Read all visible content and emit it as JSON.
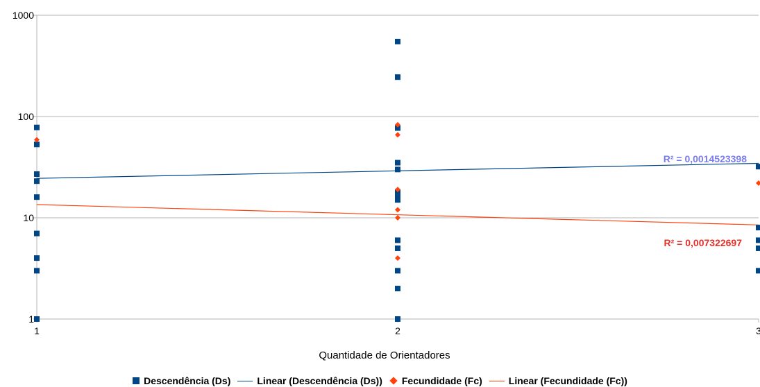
{
  "chart_data": {
    "type": "scatter",
    "xlabel": "Quantidade de Orientadores",
    "ylabel": "",
    "xlim": [
      1,
      3
    ],
    "ylim": [
      1,
      1000
    ],
    "yscale": "log",
    "grid": true,
    "legend_position": "bottom",
    "x_ticks": [
      "1",
      "2",
      "3"
    ],
    "y_ticks": [
      "1",
      "10",
      "100",
      "1000"
    ],
    "series": [
      {
        "name": "Descendência (Ds)",
        "marker": "square",
        "color": "#004586",
        "points": [
          {
            "x": 1,
            "y": 78
          },
          {
            "x": 1,
            "y": 53
          },
          {
            "x": 1,
            "y": 27
          },
          {
            "x": 1,
            "y": 23
          },
          {
            "x": 1,
            "y": 16
          },
          {
            "x": 1,
            "y": 7
          },
          {
            "x": 1,
            "y": 4
          },
          {
            "x": 1,
            "y": 3
          },
          {
            "x": 1,
            "y": 1
          },
          {
            "x": 2,
            "y": 550
          },
          {
            "x": 2,
            "y": 245
          },
          {
            "x": 2,
            "y": 77
          },
          {
            "x": 2,
            "y": 35
          },
          {
            "x": 2,
            "y": 30
          },
          {
            "x": 2,
            "y": 18
          },
          {
            "x": 2,
            "y": 17
          },
          {
            "x": 2,
            "y": 16
          },
          {
            "x": 2,
            "y": 15
          },
          {
            "x": 2,
            "y": 6
          },
          {
            "x": 2,
            "y": 5
          },
          {
            "x": 2,
            "y": 3
          },
          {
            "x": 2,
            "y": 2
          },
          {
            "x": 2,
            "y": 1
          },
          {
            "x": 3,
            "y": 32
          },
          {
            "x": 3,
            "y": 8
          },
          {
            "x": 3,
            "y": 6
          },
          {
            "x": 3,
            "y": 5
          },
          {
            "x": 3,
            "y": 3
          }
        ]
      },
      {
        "name": "Fecundidade (Fc)",
        "marker": "diamond",
        "color": "#ff420e",
        "points": [
          {
            "x": 1,
            "y": 59
          },
          {
            "x": 2,
            "y": 83
          },
          {
            "x": 2,
            "y": 66
          },
          {
            "x": 2,
            "y": 19
          },
          {
            "x": 2,
            "y": 12
          },
          {
            "x": 2,
            "y": 10
          },
          {
            "x": 2,
            "y": 4
          },
          {
            "x": 3,
            "y": 22
          }
        ]
      }
    ],
    "trendlines": [
      {
        "name": "Linear (Descendência (Ds))",
        "color": "#004586",
        "start": {
          "x": 1,
          "y": 24.5
        },
        "end": {
          "x": 3,
          "y": 34.5
        },
        "r2_label": "R² = 0,0014523398",
        "r2_color": "#7b7bf0"
      },
      {
        "name": "Linear (Fecundidade (Fc))",
        "color": "#ff420e",
        "start": {
          "x": 1,
          "y": 13.5
        },
        "end": {
          "x": 3,
          "y": 8.5
        },
        "r2_label": "R² = 0,007322697",
        "r2_color": "#e8302a"
      }
    ]
  },
  "legend": {
    "items": [
      {
        "label": "Descendência (Ds)",
        "symbol": "square",
        "color": "#004586"
      },
      {
        "label": "Linear (Descendência (Ds))",
        "symbol": "line",
        "color": "#004586"
      },
      {
        "label": "Fecundidade (Fc)",
        "symbol": "diamond",
        "color": "#ff420e"
      },
      {
        "label": "Linear (Fecundidade (Fc))",
        "symbol": "line",
        "color": "#ff420e"
      }
    ]
  }
}
